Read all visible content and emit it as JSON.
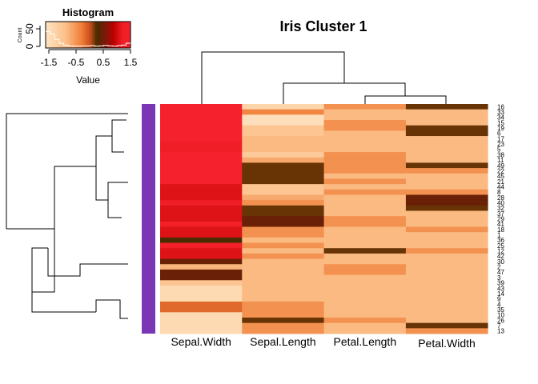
{
  "chart_data": {
    "type": "heatmap",
    "title": "Iris Cluster 1",
    "columns": [
      "Sepal.Width",
      "Sepal.Length",
      "Petal.Length",
      "Petal.Width"
    ],
    "row_labels": [
      "16",
      "33",
      "34",
      "15",
      "19",
      "6",
      "17",
      "23",
      "5",
      "38",
      "11",
      "49",
      "22",
      "45",
      "21",
      "44",
      "8",
      "28",
      "40",
      "32",
      "37",
      "29",
      "41",
      "18",
      "1",
      "36",
      "25",
      "12",
      "42",
      "30",
      "2",
      "47",
      "3",
      "39",
      "43",
      "14",
      "9",
      "4",
      "35",
      "10",
      "26",
      "7",
      "13"
    ],
    "values": [
      [
        1.5,
        -1.2,
        -0.4,
        0.25
      ],
      [
        1.5,
        -0.3,
        -0.75,
        -0.75
      ],
      [
        1.5,
        -1.4,
        -0.75,
        -0.75
      ],
      [
        1.5,
        -1.4,
        -0.4,
        -0.75
      ],
      [
        1.5,
        -0.9,
        -0.4,
        0.25
      ],
      [
        1.5,
        -0.9,
        -0.75,
        0.25
      ],
      [
        1.5,
        -0.75,
        -0.75,
        -0.75
      ],
      [
        1.3,
        -0.75,
        -0.75,
        -0.75
      ],
      [
        1.3,
        -0.75,
        -0.75,
        -0.75
      ],
      [
        1.5,
        -1.0,
        -0.4,
        -0.75
      ],
      [
        1.5,
        -0.6,
        -0.4,
        -0.75
      ],
      [
        1.5,
        0.25,
        -0.4,
        0.25
      ],
      [
        1.5,
        0.25,
        -0.4,
        -0.4
      ],
      [
        1.5,
        0.25,
        -0.75,
        -0.75
      ],
      [
        1.5,
        0.25,
        -0.4,
        -0.75
      ],
      [
        1.1,
        -0.9,
        -0.75,
        -0.75
      ],
      [
        1.1,
        -0.9,
        -0.4,
        -0.4
      ],
      [
        1.1,
        -0.6,
        -0.75,
        0.5
      ],
      [
        1.3,
        -0.4,
        -0.75,
        0.5
      ],
      [
        1.1,
        0.25,
        -0.75,
        0.25
      ],
      [
        1.1,
        0.25,
        -0.75,
        -0.75
      ],
      [
        1.1,
        0.5,
        -0.4,
        -0.75
      ],
      [
        1.4,
        0.5,
        -0.4,
        -0.75
      ],
      [
        1.1,
        -0.4,
        -0.75,
        -0.4
      ],
      [
        1.1,
        -0.4,
        -0.75,
        -0.75
      ],
      [
        0.3,
        -0.75,
        -0.75,
        -0.75
      ],
      [
        1.4,
        -0.4,
        -0.75,
        -0.75
      ],
      [
        1.1,
        -0.75,
        0.25,
        -0.4
      ],
      [
        1.1,
        -0.4,
        -0.75,
        -0.75
      ],
      [
        0.5,
        -0.75,
        -0.75,
        -0.75
      ],
      [
        -0.7,
        -0.75,
        -0.4,
        -0.75
      ],
      [
        0.5,
        -0.75,
        -0.4,
        -0.75
      ],
      [
        0.5,
        -0.75,
        -0.75,
        -0.75
      ],
      [
        -0.9,
        -0.75,
        -0.75,
        -0.75
      ],
      [
        -1.3,
        -0.75,
        -0.75,
        -0.75
      ],
      [
        -1.3,
        -0.75,
        -0.75,
        -0.75
      ],
      [
        -1.3,
        -0.75,
        -0.75,
        -0.75
      ],
      [
        -0.1,
        -0.4,
        -0.75,
        -0.75
      ],
      [
        -0.1,
        -0.4,
        -0.75,
        -0.75
      ],
      [
        -1.3,
        -0.4,
        -0.75,
        -0.75
      ],
      [
        -1.3,
        0.25,
        -0.4,
        -0.75
      ],
      [
        -1.3,
        -0.4,
        -0.75,
        0.25
      ],
      [
        -1.3,
        -0.4,
        -0.75,
        -0.4
      ]
    ],
    "color_scale": {
      "stops": [
        [
          -1.5,
          "#ffe4c4"
        ],
        [
          -0.8,
          "#fbc089"
        ],
        [
          -0.2,
          "#ef7a34"
        ],
        [
          0.1,
          "#c04a18"
        ],
        [
          0.3,
          "#4a2c00"
        ],
        [
          0.6,
          "#7a1a0a"
        ],
        [
          0.9,
          "#bb0000"
        ],
        [
          1.2,
          "#ee1c22"
        ],
        [
          1.5,
          "#f5222e"
        ]
      ]
    },
    "row_side_color": "#7b36b5",
    "color_key": {
      "title": "Histogram",
      "xlabel": "Value",
      "ylabel": "Count",
      "ticks": [
        "-1.5",
        "-0.5",
        "0.5",
        "1.5"
      ],
      "count_ticks": [
        "0",
        "50"
      ],
      "range": [
        -1.5,
        1.5
      ]
    }
  }
}
